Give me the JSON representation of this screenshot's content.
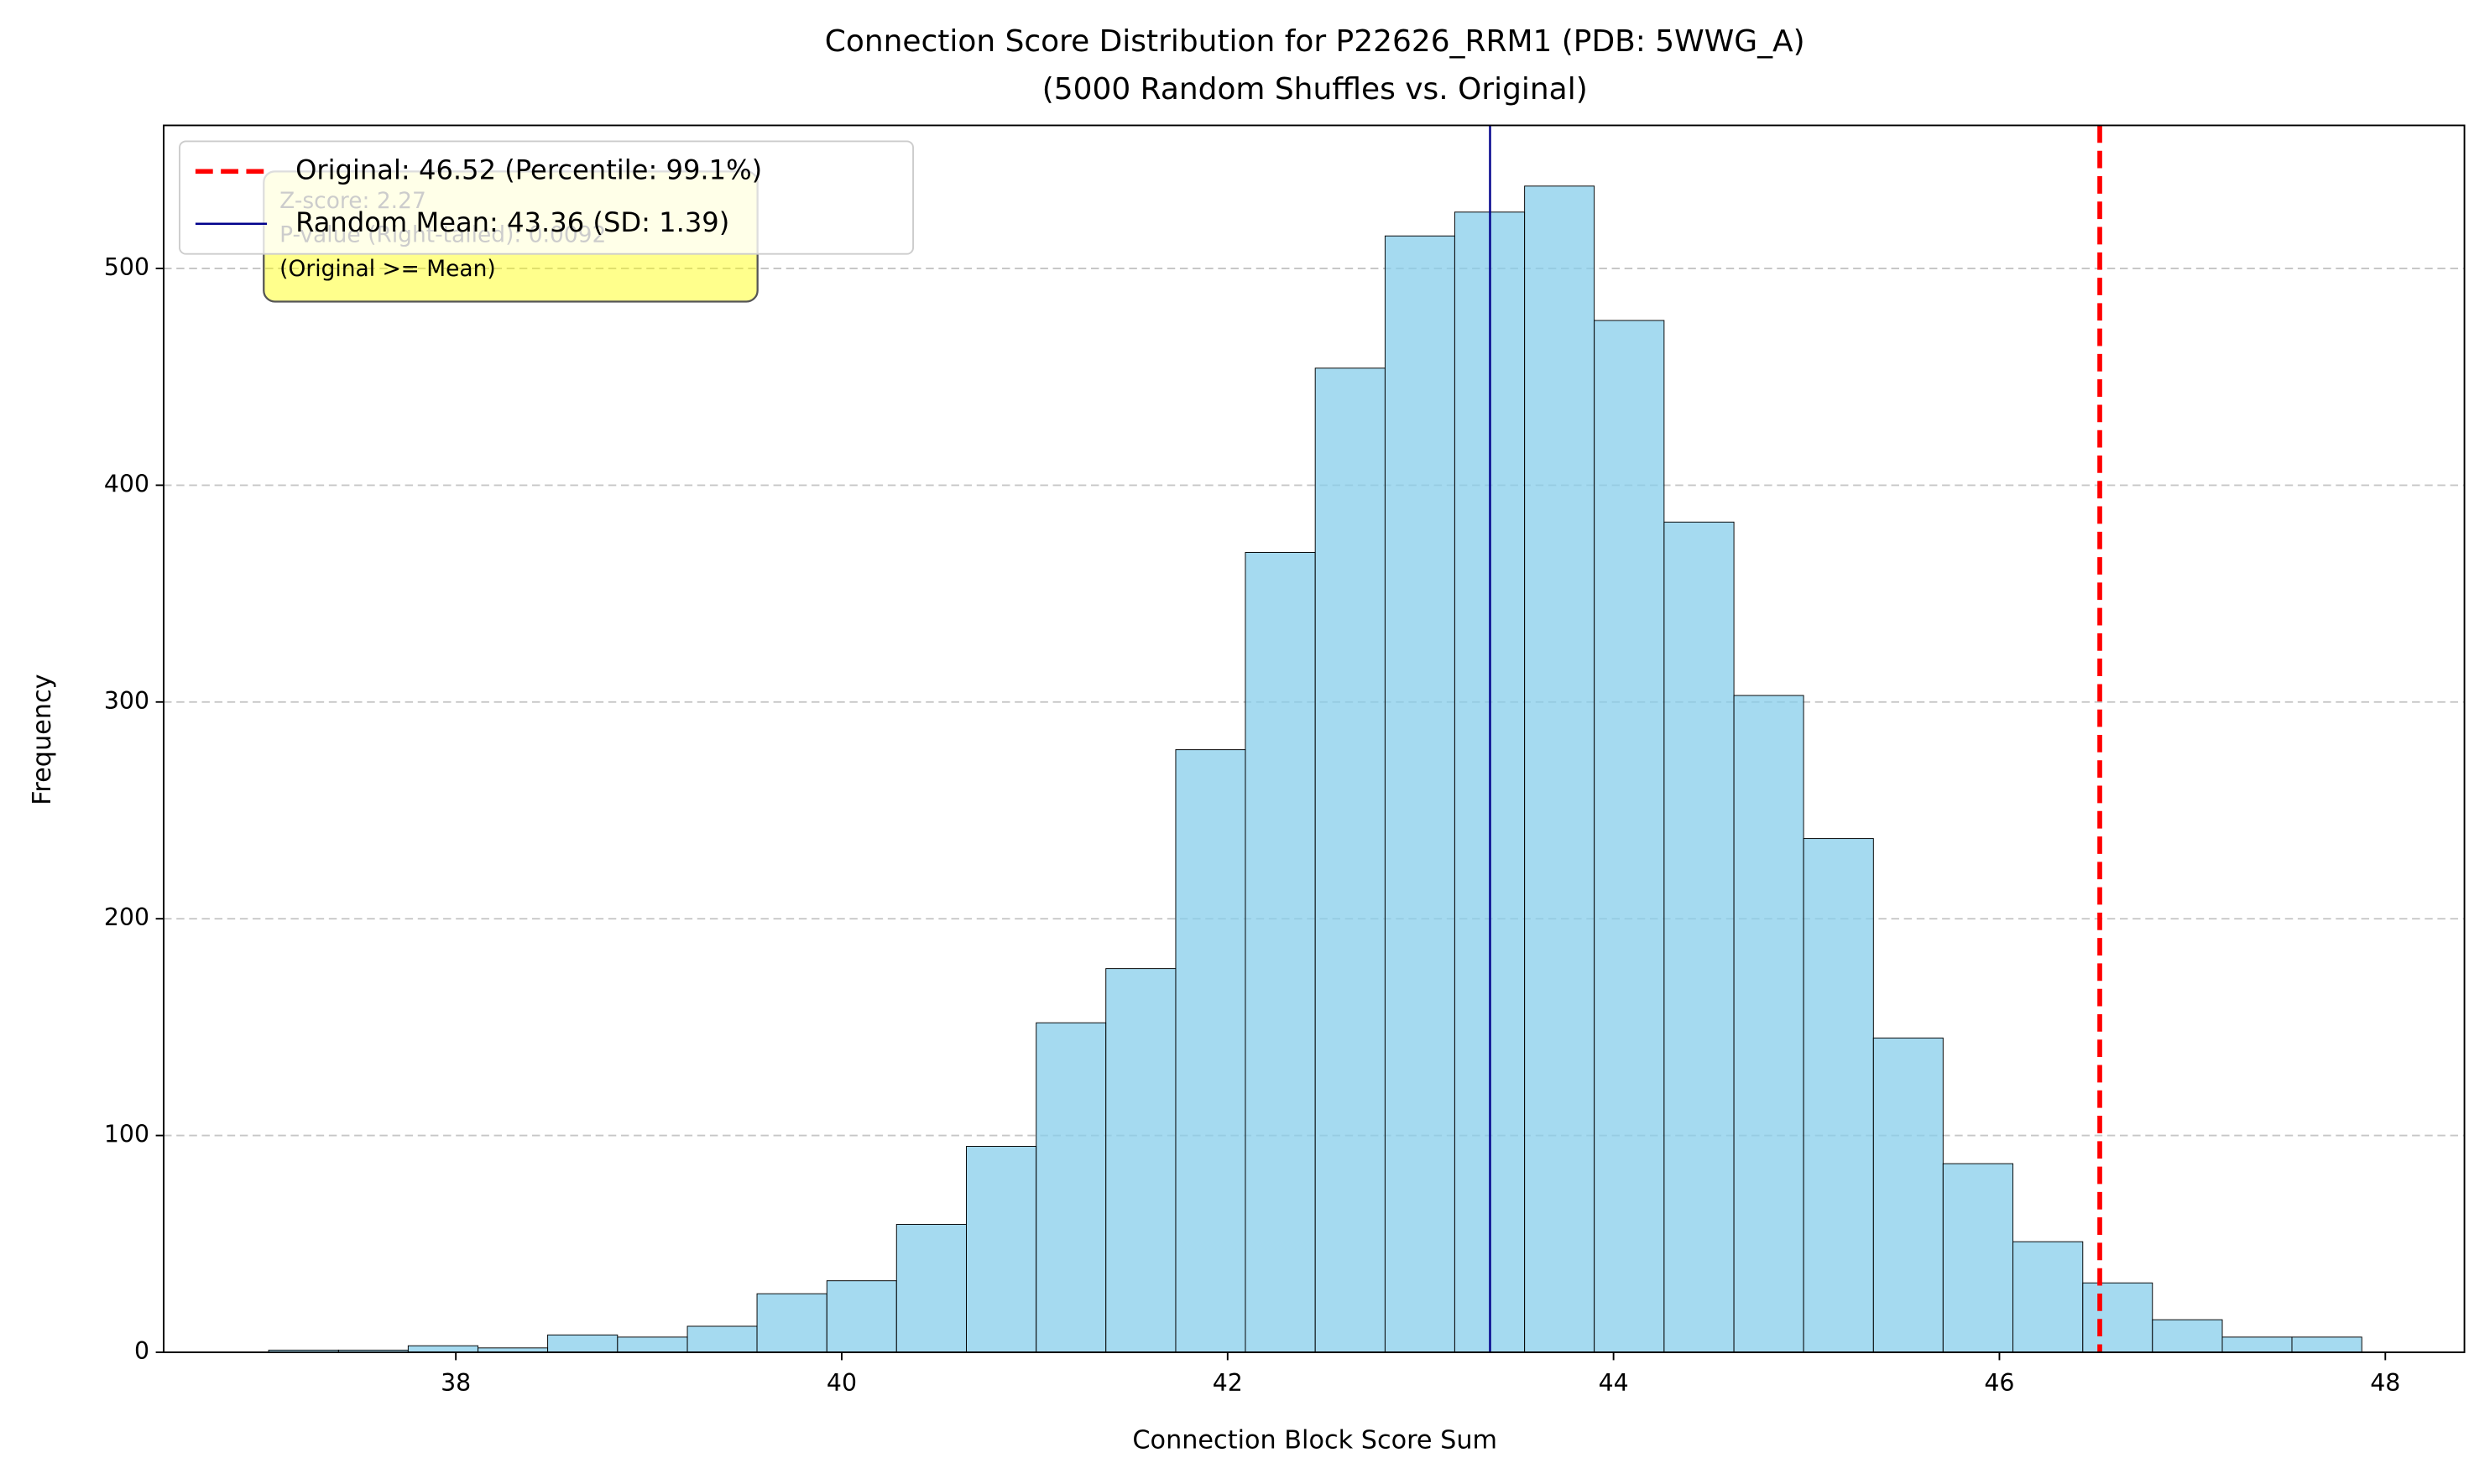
{
  "chart_data": {
    "type": "histogram",
    "title": "Connection Score Distribution for P22626_RRM1 (PDB: 5WWG_A)",
    "subtitle": "(5000 Random Shuffles vs. Original)",
    "x_label": "Connection Block Score Sum",
    "y_label": "Frequency",
    "bins": [
      37.03,
      37.392,
      37.753,
      38.115,
      38.476,
      38.838,
      39.2,
      39.561,
      39.923,
      40.284,
      40.646,
      41.008,
      41.369,
      41.731,
      42.092,
      42.454,
      42.816,
      43.177,
      43.539,
      43.9,
      44.262,
      44.624,
      44.985,
      45.347,
      45.708,
      46.07,
      46.432,
      46.793,
      47.155,
      47.516,
      47.878
    ],
    "values": [
      1,
      1,
      3,
      2,
      8,
      7,
      12,
      27,
      33,
      59,
      95,
      152,
      177,
      278,
      369,
      454,
      515,
      526,
      538,
      476,
      383,
      303,
      237,
      145,
      87,
      51,
      32,
      15,
      7,
      7
    ],
    "color": "#87ceeb",
    "edge_color": "#000000",
    "xlim": [
      36.486,
      48.41
    ],
    "ylim": [
      0,
      566
    ],
    "xticks": [
      38,
      40,
      42,
      44,
      46,
      48
    ],
    "yticks": [
      0,
      100,
      200,
      300,
      400,
      500
    ],
    "grid": true,
    "reference_lines": [
      {
        "name": "Original: 46.52 (Percentile: 99.1%)",
        "value": 46.52,
        "color": "#ff0000",
        "style": "dashed"
      },
      {
        "name": "Random Mean: 43.36 (SD: 1.39)",
        "value": 43.36,
        "color": "#00008b",
        "style": "solid"
      }
    ],
    "legend": "upper left",
    "annotation": [
      "Z-score: 2.27",
      "P-value (Right-tailed): 0.0092",
      "(Original >= Mean)"
    ]
  }
}
